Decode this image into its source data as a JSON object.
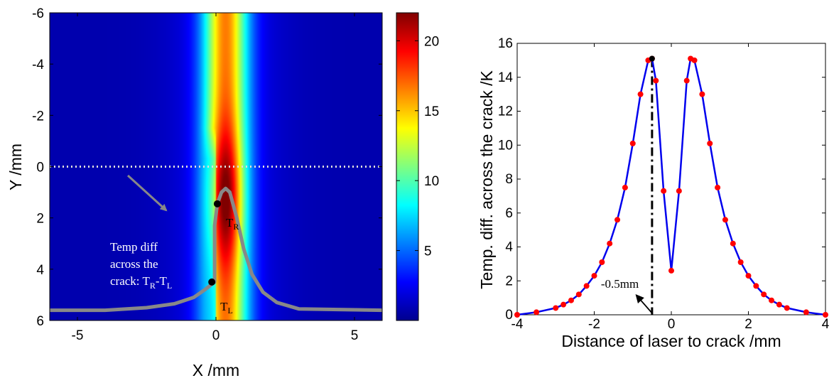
{
  "chart_data": [
    {
      "type": "heatmap",
      "xlabel": "X /mm",
      "ylabel": "Y /mm",
      "xlim": [
        -6,
        6
      ],
      "ylim": [
        -6,
        6
      ],
      "y_axis_reversed": true,
      "xticks": [
        "-5",
        "0",
        "5"
      ],
      "yticks": [
        "-6",
        "-4",
        "-2",
        "0",
        "2",
        "4",
        "6"
      ],
      "colorbar": {
        "range": [
          0,
          22
        ],
        "ticks": [
          "5",
          "10",
          "15",
          "20"
        ],
        "colormap": "jet"
      },
      "field_model": {
        "center_x": 0.35,
        "peak_value": 22,
        "hot_core_y_range": [
          -1.5,
          4
        ],
        "crack_x": 0
      },
      "scan_line": {
        "y": 0
      },
      "overlay_curve": {
        "baseline_y": 5.6,
        "points": [
          [
            -6,
            5.6
          ],
          [
            -4,
            5.6
          ],
          [
            -2.5,
            5.5
          ],
          [
            -1.5,
            5.35
          ],
          [
            -0.8,
            5.1
          ],
          [
            -0.4,
            4.8
          ],
          [
            -0.05,
            4.5
          ],
          [
            -0.05,
            3.5
          ],
          [
            -0.05,
            2.3
          ],
          [
            0.05,
            1.45
          ],
          [
            0.2,
            1.0
          ],
          [
            0.35,
            0.85
          ],
          [
            0.5,
            1.0
          ],
          [
            0.75,
            2.0
          ],
          [
            1.0,
            3.2
          ],
          [
            1.3,
            4.2
          ],
          [
            1.7,
            4.9
          ],
          [
            2.2,
            5.3
          ],
          [
            3.0,
            5.55
          ],
          [
            6,
            5.6
          ]
        ]
      },
      "markers": [
        {
          "x": 0.05,
          "y": 1.45,
          "label": "T",
          "sub": "R"
        },
        {
          "x": -0.15,
          "y": 4.5,
          "label": "T",
          "sub": "L"
        }
      ],
      "annotation_lines": [
        "Temp diff",
        "across the",
        "crack: T"
      ],
      "annotation_sub_R": "R",
      "annotation_minus": "-T",
      "annotation_sub_L": "L"
    },
    {
      "type": "line",
      "xlabel": "Distance of laser to crack /mm",
      "ylabel": "Temp. diff. across the crack /K",
      "xlim": [
        -4,
        4
      ],
      "ylim": [
        0,
        16
      ],
      "xticks": [
        "-4",
        "-2",
        "0",
        "2",
        "4"
      ],
      "yticks": [
        "0",
        "2",
        "4",
        "6",
        "8",
        "10",
        "12",
        "14",
        "16"
      ],
      "x": [
        -4,
        -3.5,
        -3,
        -2.8,
        -2.6,
        -2.4,
        -2.2,
        -2.0,
        -1.8,
        -1.6,
        -1.4,
        -1.2,
        -1.0,
        -0.8,
        -0.6,
        -0.5,
        -0.4,
        -0.2,
        0,
        0.2,
        0.4,
        0.5,
        0.6,
        0.8,
        1.0,
        1.2,
        1.4,
        1.6,
        1.8,
        2.0,
        2.2,
        2.4,
        2.6,
        2.8,
        3.0,
        3.5,
        4.0
      ],
      "y": [
        0,
        0.15,
        0.4,
        0.6,
        0.85,
        1.2,
        1.7,
        2.3,
        3.1,
        4.2,
        5.6,
        7.5,
        10.1,
        13.0,
        15.0,
        15.1,
        13.8,
        7.3,
        2.6,
        7.3,
        13.8,
        15.1,
        15.0,
        13.0,
        10.1,
        7.5,
        5.6,
        4.2,
        3.1,
        2.3,
        1.7,
        1.2,
        0.85,
        0.6,
        0.4,
        0.15,
        0
      ],
      "line_color": "#0000ee",
      "marker_color": "#ff0000",
      "annotation": {
        "text": "-0.5mm",
        "x": -0.5
      }
    }
  ]
}
